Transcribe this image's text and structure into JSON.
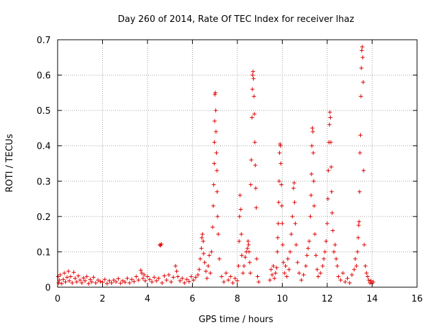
{
  "chart_data": {
    "type": "scatter",
    "title": "Day 260 of 2014, Rate Of TEC Index for receiver lhaz",
    "xlabel": "GPS time / hours",
    "ylabel": "ROTI / TECUs",
    "xlim": [
      0,
      16
    ],
    "ylim": [
      0,
      0.7
    ],
    "xticks": [
      0,
      2,
      4,
      6,
      8,
      10,
      12,
      14,
      16
    ],
    "yticks": [
      0,
      0.1,
      0.2,
      0.3,
      0.4,
      0.5,
      0.6,
      0.7
    ],
    "xtick_labels": [
      "0",
      "2",
      "4",
      "6",
      "8",
      "10",
      "12",
      "14",
      "16"
    ],
    "ytick_labels": [
      "0",
      "0.1",
      "0.2",
      "0.3",
      "0.4",
      "0.5",
      "0.6",
      "0.7"
    ],
    "grid": true,
    "marker": "+",
    "marker_color": "#e00000",
    "series": [
      {
        "name": "ROTI",
        "points": [
          [
            0.02,
            0.03
          ],
          [
            0.05,
            0.012
          ],
          [
            0.08,
            0.02
          ],
          [
            0.12,
            0.035
          ],
          [
            0.18,
            0.01
          ],
          [
            0.25,
            0.022
          ],
          [
            0.3,
            0.04
          ],
          [
            0.35,
            0.015
          ],
          [
            0.42,
            0.028
          ],
          [
            0.48,
            0.045
          ],
          [
            0.52,
            0.018
          ],
          [
            0.58,
            0.03
          ],
          [
            0.65,
            0.012
          ],
          [
            0.72,
            0.042
          ],
          [
            0.78,
            0.025
          ],
          [
            0.85,
            0.015
          ],
          [
            0.92,
            0.032
          ],
          [
            1.0,
            0.02
          ],
          [
            1.08,
            0.012
          ],
          [
            1.15,
            0.026
          ],
          [
            1.22,
            0.018
          ],
          [
            1.3,
            0.03
          ],
          [
            1.38,
            0.01
          ],
          [
            1.45,
            0.022
          ],
          [
            1.52,
            0.015
          ],
          [
            1.6,
            0.028
          ],
          [
            1.7,
            0.012
          ],
          [
            1.8,
            0.02
          ],
          [
            1.9,
            0.016
          ],
          [
            2.0,
            0.014
          ],
          [
            2.1,
            0.022
          ],
          [
            2.2,
            0.01
          ],
          [
            2.3,
            0.018
          ],
          [
            2.4,
            0.012
          ],
          [
            2.5,
            0.02
          ],
          [
            2.6,
            0.015
          ],
          [
            2.7,
            0.024
          ],
          [
            2.8,
            0.011
          ],
          [
            2.9,
            0.018
          ],
          [
            3.0,
            0.014
          ],
          [
            3.1,
            0.025
          ],
          [
            3.2,
            0.012
          ],
          [
            3.3,
            0.022
          ],
          [
            3.4,
            0.016
          ],
          [
            3.5,
            0.03
          ],
          [
            3.6,
            0.02
          ],
          [
            3.7,
            0.048
          ],
          [
            3.75,
            0.04
          ],
          [
            3.8,
            0.025
          ],
          [
            3.85,
            0.035
          ],
          [
            3.9,
            0.018
          ],
          [
            4.0,
            0.03
          ],
          [
            4.1,
            0.022
          ],
          [
            4.2,
            0.015
          ],
          [
            4.3,
            0.028
          ],
          [
            4.4,
            0.018
          ],
          [
            4.5,
            0.025
          ],
          [
            4.55,
            0.12
          ],
          [
            4.58,
            0.118
          ],
          [
            4.62,
            0.122
          ],
          [
            4.65,
            0.012
          ],
          [
            4.75,
            0.032
          ],
          [
            4.85,
            0.02
          ],
          [
            4.95,
            0.035
          ],
          [
            5.05,
            0.015
          ],
          [
            5.15,
            0.028
          ],
          [
            5.25,
            0.06
          ],
          [
            5.3,
            0.045
          ],
          [
            5.35,
            0.03
          ],
          [
            5.45,
            0.018
          ],
          [
            5.55,
            0.025
          ],
          [
            5.65,
            0.012
          ],
          [
            5.75,
            0.022
          ],
          [
            5.85,
            0.016
          ],
          [
            5.95,
            0.03
          ],
          [
            6.05,
            0.02
          ],
          [
            6.15,
            0.028
          ],
          [
            6.25,
            0.035
          ],
          [
            6.3,
            0.05
          ],
          [
            6.35,
            0.08
          ],
          [
            6.4,
            0.11
          ],
          [
            6.42,
            0.14
          ],
          [
            6.45,
            0.15
          ],
          [
            6.48,
            0.13
          ],
          [
            6.5,
            0.095
          ],
          [
            6.55,
            0.07
          ],
          [
            6.6,
            0.045
          ],
          [
            6.65,
            0.025
          ],
          [
            6.7,
            0.06
          ],
          [
            6.75,
            0.09
          ],
          [
            6.8,
            0.04
          ],
          [
            6.85,
            0.1
          ],
          [
            6.9,
            0.17
          ],
          [
            6.93,
            0.23
          ],
          [
            6.95,
            0.29
          ],
          [
            6.97,
            0.35
          ],
          [
            6.98,
            0.41
          ],
          [
            6.99,
            0.47
          ],
          [
            7.0,
            0.545
          ],
          [
            7.02,
            0.55
          ],
          [
            7.04,
            0.5
          ],
          [
            7.05,
            0.44
          ],
          [
            7.07,
            0.38
          ],
          [
            7.09,
            0.33
          ],
          [
            7.1,
            0.27
          ],
          [
            7.12,
            0.2
          ],
          [
            7.15,
            0.15
          ],
          [
            7.2,
            0.08
          ],
          [
            7.3,
            0.03
          ],
          [
            7.4,
            0.015
          ],
          [
            7.5,
            0.04
          ],
          [
            7.6,
            0.02
          ],
          [
            7.7,
            0.03
          ],
          [
            7.8,
            0.012
          ],
          [
            7.9,
            0.025
          ],
          [
            8.0,
            0.018
          ],
          [
            8.05,
            0.06
          ],
          [
            8.08,
            0.13
          ],
          [
            8.1,
            0.2
          ],
          [
            8.12,
            0.26
          ],
          [
            8.15,
            0.22
          ],
          [
            8.18,
            0.15
          ],
          [
            8.2,
            0.09
          ],
          [
            8.25,
            0.04
          ],
          [
            8.3,
            0.06
          ],
          [
            8.35,
            0.085
          ],
          [
            8.4,
            0.1
          ],
          [
            8.45,
            0.11
          ],
          [
            8.48,
            0.13
          ],
          [
            8.5,
            0.12
          ],
          [
            8.52,
            0.1
          ],
          [
            8.55,
            0.07
          ],
          [
            8.58,
            0.04
          ],
          [
            8.6,
            0.29
          ],
          [
            8.62,
            0.36
          ],
          [
            8.65,
            0.48
          ],
          [
            8.67,
            0.56
          ],
          [
            8.68,
            0.6
          ],
          [
            8.7,
            0.61
          ],
          [
            8.72,
            0.59
          ],
          [
            8.74,
            0.54
          ],
          [
            8.76,
            0.49
          ],
          [
            8.78,
            0.41
          ],
          [
            8.8,
            0.345
          ],
          [
            8.82,
            0.28
          ],
          [
            8.84,
            0.225
          ],
          [
            8.86,
            0.08
          ],
          [
            8.9,
            0.03
          ],
          [
            8.95,
            0.015
          ],
          [
            9.45,
            0.02
          ],
          [
            9.5,
            0.05
          ],
          [
            9.55,
            0.035
          ],
          [
            9.6,
            0.06
          ],
          [
            9.65,
            0.025
          ],
          [
            9.7,
            0.04
          ],
          [
            9.75,
            0.055
          ],
          [
            9.78,
            0.1
          ],
          [
            9.8,
            0.14
          ],
          [
            9.82,
            0.18
          ],
          [
            9.84,
            0.24
          ],
          [
            9.86,
            0.3
          ],
          [
            9.88,
            0.38
          ],
          [
            9.9,
            0.405
          ],
          [
            9.92,
            0.4
          ],
          [
            9.94,
            0.35
          ],
          [
            9.96,
            0.29
          ],
          [
            9.98,
            0.23
          ],
          [
            10.0,
            0.18
          ],
          [
            10.02,
            0.12
          ],
          [
            10.05,
            0.07
          ],
          [
            10.1,
            0.04
          ],
          [
            10.15,
            0.06
          ],
          [
            10.2,
            0.03
          ],
          [
            10.25,
            0.08
          ],
          [
            10.3,
            0.05
          ],
          [
            10.35,
            0.1
          ],
          [
            10.4,
            0.15
          ],
          [
            10.45,
            0.2
          ],
          [
            10.5,
            0.28
          ],
          [
            10.53,
            0.295
          ],
          [
            10.55,
            0.24
          ],
          [
            10.58,
            0.18
          ],
          [
            10.62,
            0.12
          ],
          [
            10.68,
            0.07
          ],
          [
            10.75,
            0.04
          ],
          [
            10.85,
            0.02
          ],
          [
            10.95,
            0.035
          ],
          [
            11.05,
            0.06
          ],
          [
            11.1,
            0.09
          ],
          [
            11.15,
            0.11
          ],
          [
            11.2,
            0.13
          ],
          [
            11.25,
            0.2
          ],
          [
            11.28,
            0.26
          ],
          [
            11.3,
            0.32
          ],
          [
            11.32,
            0.4
          ],
          [
            11.34,
            0.45
          ],
          [
            11.36,
            0.44
          ],
          [
            11.38,
            0.38
          ],
          [
            11.4,
            0.3
          ],
          [
            11.42,
            0.23
          ],
          [
            11.45,
            0.15
          ],
          [
            11.5,
            0.09
          ],
          [
            11.55,
            0.05
          ],
          [
            11.6,
            0.03
          ],
          [
            11.7,
            0.04
          ],
          [
            11.8,
            0.06
          ],
          [
            11.85,
            0.08
          ],
          [
            11.9,
            0.1
          ],
          [
            11.95,
            0.13
          ],
          [
            12.0,
            0.18
          ],
          [
            12.03,
            0.25
          ],
          [
            12.05,
            0.33
          ],
          [
            12.08,
            0.41
          ],
          [
            12.1,
            0.46
          ],
          [
            12.12,
            0.495
          ],
          [
            12.14,
            0.48
          ],
          [
            12.16,
            0.41
          ],
          [
            12.18,
            0.34
          ],
          [
            12.2,
            0.27
          ],
          [
            12.22,
            0.21
          ],
          [
            12.25,
            0.16
          ],
          [
            12.3,
            0.1
          ],
          [
            12.35,
            0.12
          ],
          [
            12.4,
            0.08
          ],
          [
            12.45,
            0.06
          ],
          [
            12.5,
            0.03
          ],
          [
            12.6,
            0.02
          ],
          [
            12.7,
            0.04
          ],
          [
            12.8,
            0.015
          ],
          [
            12.9,
            0.025
          ],
          [
            13.0,
            0.012
          ],
          [
            13.1,
            0.035
          ],
          [
            13.2,
            0.05
          ],
          [
            13.25,
            0.08
          ],
          [
            13.3,
            0.06
          ],
          [
            13.35,
            0.1
          ],
          [
            13.38,
            0.14
          ],
          [
            13.4,
            0.175
          ],
          [
            13.42,
            0.185
          ],
          [
            13.44,
            0.27
          ],
          [
            13.46,
            0.38
          ],
          [
            13.48,
            0.43
          ],
          [
            13.5,
            0.54
          ],
          [
            13.52,
            0.62
          ],
          [
            13.54,
            0.67
          ],
          [
            13.56,
            0.68
          ],
          [
            13.58,
            0.65
          ],
          [
            13.6,
            0.58
          ],
          [
            13.62,
            0.33
          ],
          [
            13.65,
            0.12
          ],
          [
            13.7,
            0.06
          ],
          [
            13.75,
            0.04
          ],
          [
            13.8,
            0.03
          ],
          [
            13.85,
            0.02
          ],
          [
            13.9,
            0.012
          ],
          [
            13.95,
            0.018
          ],
          [
            14.0,
            0.01
          ],
          [
            14.05,
            0.015
          ]
        ]
      }
    ]
  }
}
